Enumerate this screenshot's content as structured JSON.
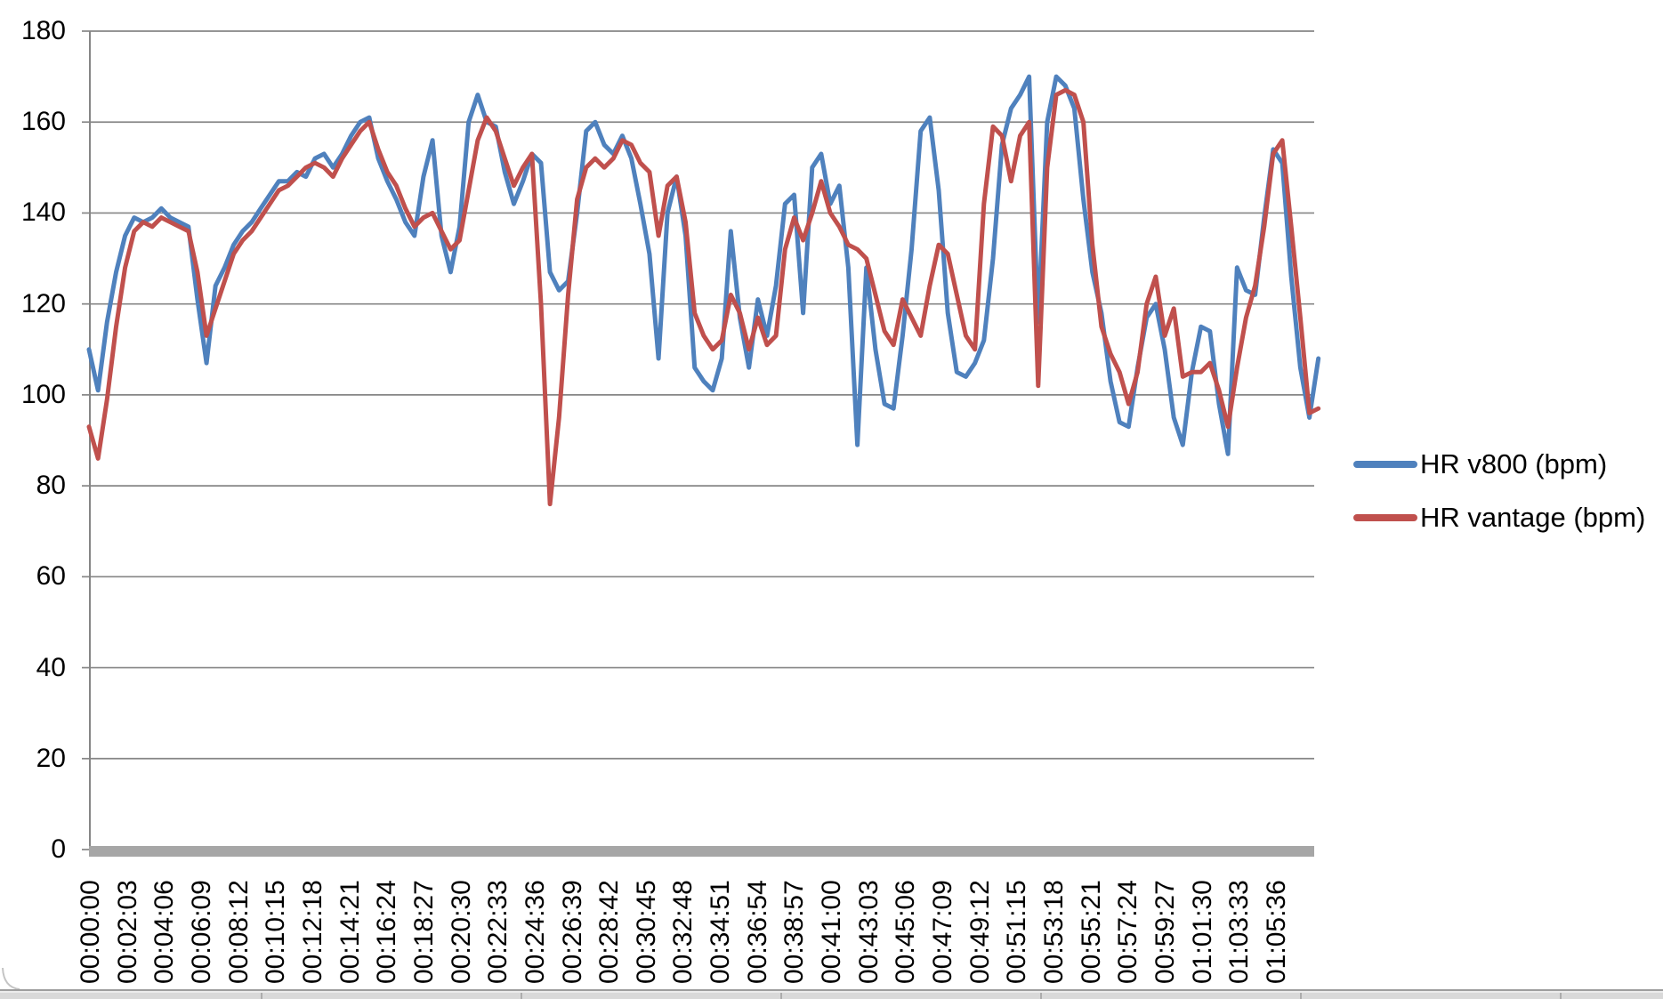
{
  "chart_data": {
    "type": "line",
    "title": "",
    "xlabel": "",
    "ylabel": "",
    "grid": "horizontal",
    "legend_position": "right",
    "y_axis": {
      "min": 0,
      "max": 180,
      "tick_step": 20,
      "ticks": [
        180,
        160,
        140,
        120,
        100,
        80,
        60,
        40,
        20,
        0
      ]
    },
    "x_axis": {
      "tick_interval_s": 123,
      "label_rotation_deg": -90,
      "tick_labels": [
        "00:00:00",
        "00:02:03",
        "00:04:06",
        "00:06:09",
        "00:08:12",
        "00:10:15",
        "00:12:18",
        "00:14:21",
        "00:16:24",
        "00:18:27",
        "00:20:30",
        "00:22:33",
        "00:24:36",
        "00:26:39",
        "00:28:42",
        "00:30:45",
        "00:32:48",
        "00:34:51",
        "00:36:54",
        "00:38:57",
        "00:41:00",
        "00:43:03",
        "00:45:06",
        "00:47:09",
        "00:49:12",
        "00:51:15",
        "00:53:18",
        "00:55:21",
        "00:57:24",
        "00:59:27",
        "01:01:30",
        "01:03:33",
        "01:05:36"
      ]
    },
    "sample_interval_s": 30,
    "duration_s": 4080,
    "time_s": [
      0,
      30,
      60,
      90,
      120,
      150,
      180,
      210,
      240,
      270,
      300,
      330,
      360,
      390,
      420,
      450,
      480,
      510,
      540,
      570,
      600,
      630,
      660,
      690,
      720,
      750,
      780,
      810,
      840,
      870,
      900,
      930,
      960,
      990,
      1020,
      1050,
      1080,
      1110,
      1140,
      1170,
      1200,
      1230,
      1260,
      1290,
      1320,
      1350,
      1380,
      1410,
      1440,
      1470,
      1500,
      1530,
      1560,
      1590,
      1620,
      1650,
      1680,
      1710,
      1740,
      1770,
      1800,
      1830,
      1860,
      1890,
      1920,
      1950,
      1980,
      2010,
      2040,
      2070,
      2100,
      2130,
      2160,
      2190,
      2220,
      2250,
      2280,
      2310,
      2340,
      2370,
      2400,
      2430,
      2460,
      2490,
      2520,
      2550,
      2580,
      2610,
      2640,
      2670,
      2700,
      2730,
      2760,
      2790,
      2820,
      2850,
      2880,
      2910,
      2940,
      2970,
      3000,
      3030,
      3060,
      3090,
      3120,
      3150,
      3180,
      3210,
      3240,
      3270,
      3300,
      3330,
      3360,
      3390,
      3420,
      3450,
      3480,
      3510,
      3540,
      3570,
      3600,
      3630,
      3660,
      3690,
      3720,
      3750,
      3780,
      3810,
      3840,
      3870,
      3900,
      3930,
      3960,
      3990,
      4020,
      4050,
      4080
    ],
    "series": [
      {
        "name": "HR v800 (bpm)",
        "color": "#4F81BD",
        "values": [
          110,
          101,
          116,
          127,
          135,
          139,
          138,
          139,
          141,
          139,
          138,
          137,
          121,
          107,
          124,
          128,
          133,
          136,
          138,
          141,
          144,
          147,
          147,
          149,
          148,
          152,
          153,
          150,
          153,
          157,
          160,
          161,
          152,
          147,
          143,
          138,
          135,
          148,
          156,
          135,
          127,
          137,
          160,
          166,
          160,
          159,
          149,
          142,
          147,
          153,
          151,
          127,
          123,
          125,
          140,
          158,
          160,
          155,
          153,
          157,
          152,
          142,
          131,
          108,
          140,
          148,
          135,
          106,
          103,
          101,
          108,
          136,
          117,
          106,
          121,
          113,
          124,
          142,
          144,
          118,
          150,
          153,
          142,
          146,
          128,
          89,
          128,
          110,
          98,
          97,
          113,
          132,
          158,
          161,
          145,
          118,
          105,
          104,
          107,
          112,
          130,
          155,
          163,
          166,
          170,
          116,
          160,
          170,
          168,
          163,
          143,
          127,
          118,
          103,
          94,
          93,
          106,
          117,
          120,
          110,
          95,
          89,
          105,
          115,
          114,
          98,
          87,
          128,
          123,
          122,
          139,
          154,
          151,
          126,
          106,
          95,
          108
        ]
      },
      {
        "name": "HR vantage (bpm)",
        "color": "#C0504D",
        "values": [
          93,
          86,
          99,
          115,
          128,
          136,
          138,
          137,
          139,
          138,
          137,
          136,
          127,
          113,
          119,
          125,
          131,
          134,
          136,
          139,
          142,
          145,
          146,
          148,
          150,
          151,
          150,
          148,
          152,
          155,
          158,
          160,
          154,
          149,
          146,
          141,
          137,
          139,
          140,
          136,
          132,
          134,
          145,
          156,
          161,
          158,
          152,
          146,
          150,
          153,
          120,
          76,
          95,
          122,
          143,
          150,
          152,
          150,
          152,
          156,
          155,
          151,
          149,
          135,
          146,
          148,
          138,
          118,
          113,
          110,
          112,
          122,
          118,
          110,
          117,
          111,
          113,
          132,
          139,
          134,
          140,
          147,
          140,
          137,
          133,
          132,
          130,
          122,
          114,
          111,
          121,
          117,
          113,
          124,
          133,
          131,
          122,
          113,
          110,
          142,
          159,
          157,
          147,
          157,
          160,
          102,
          150,
          166,
          167,
          166,
          160,
          133,
          115,
          109,
          105,
          98,
          105,
          120,
          126,
          113,
          119,
          104,
          105,
          105,
          107,
          101,
          93,
          106,
          117,
          124,
          137,
          153,
          156,
          137,
          117,
          96,
          97
        ]
      }
    ]
  },
  "legend": {
    "items": [
      {
        "label": "HR v800 (bpm)",
        "color": "#4F81BD"
      },
      {
        "label": "HR vantage (bpm)",
        "color": "#C0504D"
      }
    ]
  },
  "colors": {
    "series_v800": "#4F81BD",
    "series_vantage": "#C0504D",
    "gridline": "#868686",
    "axis_line": "#868686",
    "zero_band": "#a6a6a6",
    "sheet_strip": "#d9d9d9",
    "text": "#000000"
  }
}
